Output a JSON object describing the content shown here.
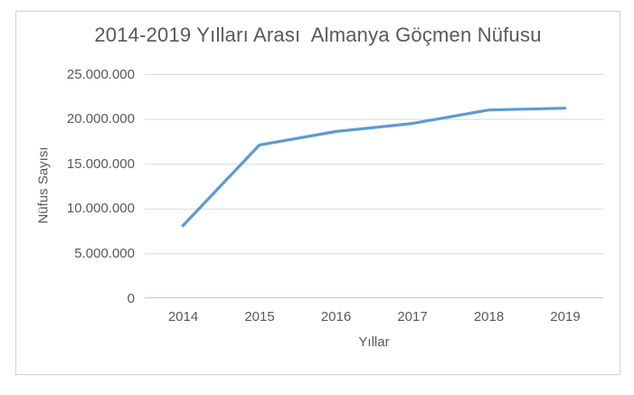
{
  "chart_data": {
    "type": "line",
    "title": "2014-2019 Yılları Arası  Almanya Göçmen Nüfusu",
    "xlabel": "Yıllar",
    "ylabel": "Nüfus Sayısı",
    "categories": [
      "2014",
      "2015",
      "2016",
      "2017",
      "2018",
      "2019"
    ],
    "values": [
      8100000,
      17100000,
      18600000,
      19500000,
      21000000,
      21200000
    ],
    "ylim": [
      0,
      25000000
    ],
    "ytick_step": 5000000,
    "ytick_labels": [
      "0",
      "5.000.000",
      "10.000.000",
      "15.000.000",
      "20.000.000",
      "25.000.000"
    ],
    "grid": "horizontal",
    "legend": "none",
    "line_color": "#5B9BD5",
    "gridline_color": "#D9D9D9",
    "axis_line_color": "#C4C4C4",
    "text_color": "#595959",
    "frame_border_color": "#D2D2D2"
  }
}
